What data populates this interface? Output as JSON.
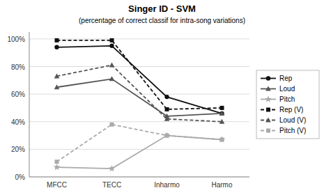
{
  "chart_data": {
    "type": "line",
    "title": "Singer ID - SVM",
    "subtitle": "(percentage of correct classif for intra-song variations)",
    "categories": [
      "MFCC",
      "TECC",
      "Inharmo",
      "Harmo"
    ],
    "series": [
      {
        "name": "Rep",
        "color": "#111111",
        "marker": "circle",
        "line_style": "solid",
        "values": [
          0.94,
          0.95,
          0.58,
          0.46
        ]
      },
      {
        "name": "Loud",
        "color": "#555555",
        "marker": "triangle",
        "line_style": "solid",
        "values": [
          0.65,
          0.71,
          0.44,
          0.46
        ]
      },
      {
        "name": "Pitch",
        "color": "#aaaaaa",
        "marker": "star",
        "line_style": "solid",
        "values": [
          0.07,
          0.06,
          0.3,
          0.27
        ]
      },
      {
        "name": "Rep (V)",
        "color": "#111111",
        "marker": "square",
        "line_style": "dashed",
        "values": [
          0.99,
          0.99,
          0.49,
          0.5
        ]
      },
      {
        "name": "Loud (V)",
        "color": "#555555",
        "marker": "triangle",
        "line_style": "dashed",
        "values": [
          0.73,
          0.81,
          0.42,
          0.4
        ]
      },
      {
        "name": "Pitch (V)",
        "color": "#aaaaaa",
        "marker": "square",
        "line_style": "dashed",
        "values": [
          0.11,
          0.38,
          0.3,
          0.27
        ]
      }
    ],
    "ylim": [
      0.0,
      1.05
    ],
    "yticks": [
      {
        "value": 0.0,
        "label": "0%"
      },
      {
        "value": 0.2,
        "label": "20%"
      },
      {
        "value": 0.4,
        "label": "40%"
      },
      {
        "value": 0.6,
        "label": "60%"
      },
      {
        "value": 0.8,
        "label": "80%"
      },
      {
        "value": 1.0,
        "label": "100%"
      }
    ],
    "grid": true,
    "legend": "right"
  }
}
